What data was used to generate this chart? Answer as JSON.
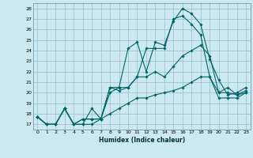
{
  "xlabel": "Humidex (Indice chaleur)",
  "bg_color": "#cce8f0",
  "grid_color": "#99bbcc",
  "line_color": "#006666",
  "xlim": [
    -0.5,
    23.5
  ],
  "ylim": [
    16.5,
    28.5
  ],
  "xticks": [
    0,
    1,
    2,
    3,
    4,
    5,
    6,
    7,
    8,
    9,
    10,
    11,
    12,
    13,
    14,
    15,
    16,
    17,
    18,
    19,
    20,
    21,
    22,
    23
  ],
  "yticks": [
    17,
    18,
    19,
    20,
    21,
    22,
    23,
    24,
    25,
    26,
    27,
    28
  ],
  "lines": [
    [
      17.7,
      17.0,
      17.0,
      18.5,
      17.0,
      17.5,
      17.5,
      17.5,
      20.5,
      20.5,
      24.2,
      24.8,
      22.0,
      24.8,
      24.5,
      26.8,
      28.0,
      27.5,
      26.5,
      23.2,
      21.2,
      19.8,
      20.0,
      20.5
    ],
    [
      17.7,
      17.0,
      17.0,
      18.5,
      17.0,
      17.5,
      17.5,
      17.5,
      20.0,
      20.5,
      20.5,
      21.5,
      24.2,
      24.2,
      24.2,
      27.0,
      27.3,
      26.5,
      25.5,
      21.5,
      19.5,
      19.5,
      19.5,
      20.0
    ],
    [
      17.7,
      17.0,
      17.0,
      18.5,
      17.0,
      17.0,
      18.5,
      17.5,
      20.5,
      20.2,
      20.5,
      21.5,
      21.5,
      22.0,
      21.5,
      22.5,
      23.5,
      24.0,
      24.5,
      23.5,
      20.0,
      20.5,
      19.8,
      20.0
    ],
    [
      17.7,
      17.0,
      17.0,
      18.5,
      17.0,
      17.0,
      17.0,
      17.5,
      18.0,
      18.5,
      19.0,
      19.5,
      19.5,
      19.8,
      20.0,
      20.2,
      20.5,
      21.0,
      21.5,
      21.5,
      20.0,
      20.0,
      19.8,
      20.2
    ]
  ]
}
